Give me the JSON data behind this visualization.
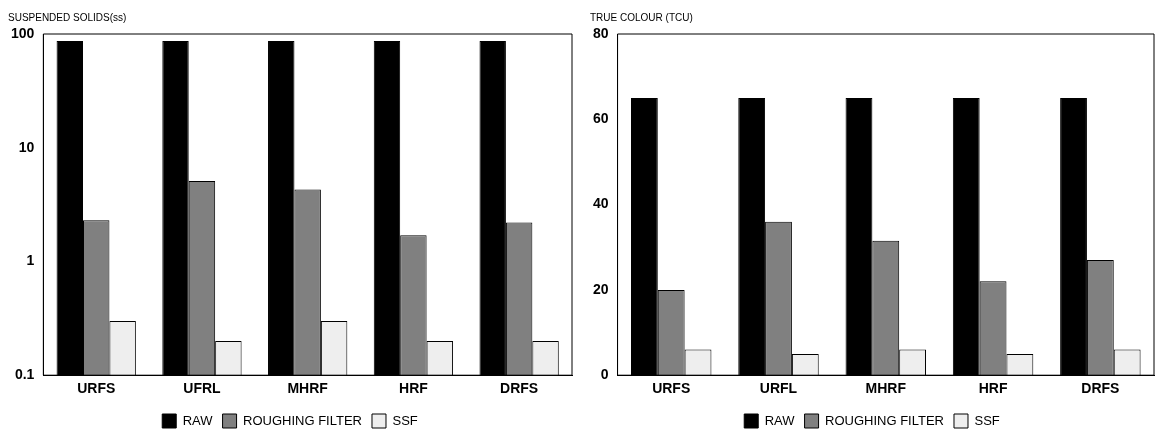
{
  "chart_data": [
    {
      "type": "bar",
      "ylabel": "SUSPENDED SOLIDS(ss)",
      "categories": [
        "URFS",
        "UFRL",
        "MHRF",
        "HRF",
        "DRFS"
      ],
      "log": true,
      "ylim": [
        0.1,
        100
      ],
      "yticks": [
        0.1,
        1,
        10,
        100
      ],
      "grid": false,
      "legend": "bottom",
      "series": [
        {
          "name": "RAW",
          "color": "#000000",
          "values": [
            87,
            87,
            87,
            87,
            87
          ]
        },
        {
          "name": "ROUGHING FILTER",
          "color": "#808080",
          "values": [
            2.3,
            5.1,
            4.3,
            1.7,
            2.2
          ]
        },
        {
          "name": "SSF",
          "color": "#eeeeee",
          "values": [
            0.3,
            0.2,
            0.3,
            0.2,
            0.2
          ]
        }
      ]
    },
    {
      "type": "bar",
      "ylabel": "TRUE COLOUR (TCU)",
      "categories": [
        "URFS",
        "URFL",
        "MHRF",
        "HRF",
        "DRFS"
      ],
      "ylim": [
        0,
        80
      ],
      "yticks": [
        0,
        20,
        40,
        60,
        80
      ],
      "grid": false,
      "legend": "bottom",
      "series": [
        {
          "name": "RAW",
          "color": "#000000",
          "values": [
            65,
            65,
            65,
            65,
            65
          ]
        },
        {
          "name": "ROUGHING FILTER",
          "color": "#808080",
          "values": [
            20,
            36,
            31.5,
            22,
            27
          ]
        },
        {
          "name": "SSF",
          "color": "#eeeeee",
          "values": [
            6,
            5,
            6,
            5,
            6
          ]
        }
      ]
    }
  ]
}
